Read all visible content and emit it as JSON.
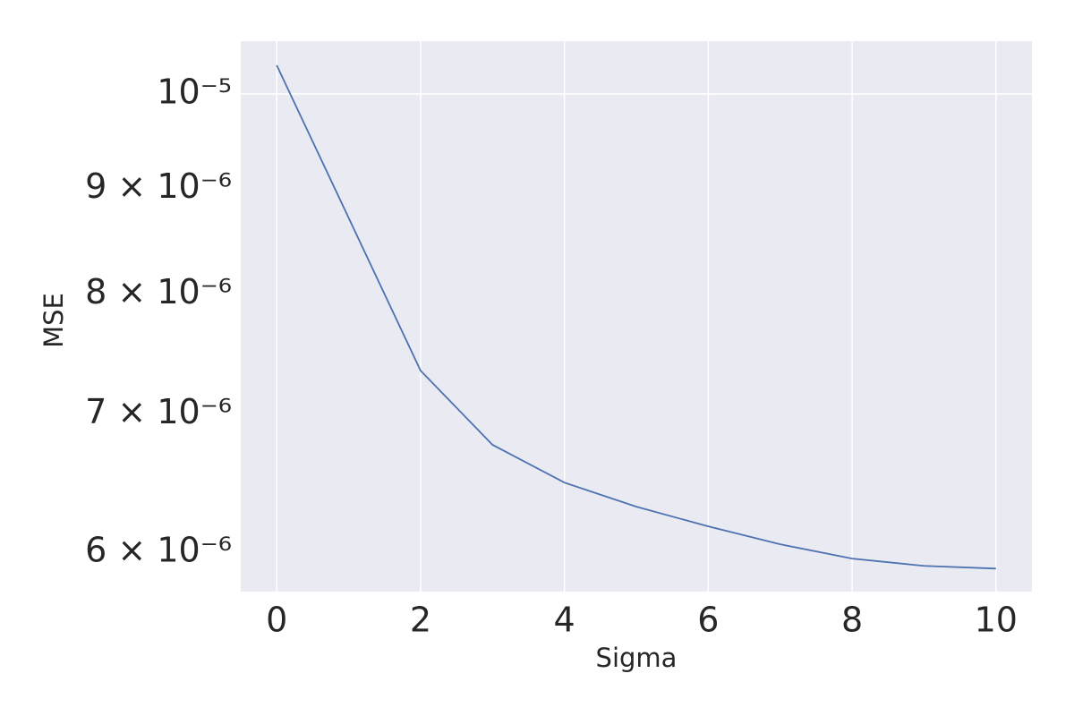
{
  "chart_data": {
    "type": "line",
    "xlabel": "Sigma",
    "ylabel": "MSE",
    "x": [
      0,
      1,
      2,
      3,
      4,
      5,
      6,
      7,
      8,
      9,
      10
    ],
    "series": [
      {
        "color": "#4c72b0",
        "values": [
          1.0325e-05,
          8.71e-06,
          7.346e-06,
          6.763e-06,
          6.484e-06,
          6.312e-06,
          6.175e-06,
          6.053e-06,
          5.957e-06,
          5.909e-06,
          5.891e-06
        ]
      }
    ],
    "xlim": [
      -0.5,
      10.5
    ],
    "xticks": [
      0,
      2,
      4,
      6,
      8,
      10
    ],
    "ylim": [
      5.742e-06,
      1.0606e-05
    ],
    "yscale": "log",
    "yticks": [
      {
        "value": 1e-05,
        "label": "10⁻⁵"
      }
    ],
    "yminorticks": [
      {
        "value": 9e-06,
        "label": "9 × 10⁻⁶"
      },
      {
        "value": 8e-06,
        "label": "8 × 10⁻⁶"
      },
      {
        "value": 7e-06,
        "label": "7 × 10⁻⁶"
      },
      {
        "value": 6e-06,
        "label": "6 × 10⁻⁶"
      }
    ],
    "grid": true,
    "background": "#eaeaf2"
  }
}
